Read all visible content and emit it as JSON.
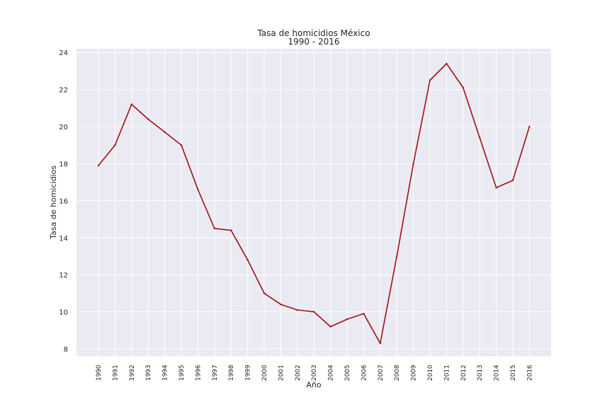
{
  "chart_data": {
    "type": "line",
    "title": "Tasa de homicidios México",
    "subtitle": "1990 - 2016",
    "xlabel": "Año",
    "ylabel": "Tasa de homicidios",
    "ylim": [
      7.6,
      24.2
    ],
    "yticks": [
      8,
      10,
      12,
      14,
      16,
      18,
      20,
      22,
      24
    ],
    "grid": true,
    "x": [
      "1990",
      "1991",
      "1992",
      "1993",
      "1994",
      "1995",
      "1996",
      "1997",
      "1998",
      "1999",
      "2000",
      "2001",
      "2002",
      "2003",
      "2004",
      "2005",
      "2006",
      "2007",
      "2008",
      "2009",
      "2010",
      "2011",
      "2012",
      "2013",
      "2014",
      "2015",
      "2016"
    ],
    "series": [
      {
        "values": [
          17.9,
          19.0,
          21.2,
          20.4,
          19.7,
          19.0,
          16.6,
          14.5,
          14.4,
          12.8,
          11.0,
          10.4,
          10.1,
          10.0,
          9.2,
          9.6,
          9.9,
          8.3,
          13.0,
          18.0,
          22.5,
          23.4,
          22.1,
          19.4,
          16.7,
          17.1,
          20.0
        ],
        "color": "#a50f15"
      }
    ]
  },
  "colors": {
    "plot_bg": "#eaeaf2",
    "grid": "#ffffff",
    "line": "#a50f15"
  }
}
